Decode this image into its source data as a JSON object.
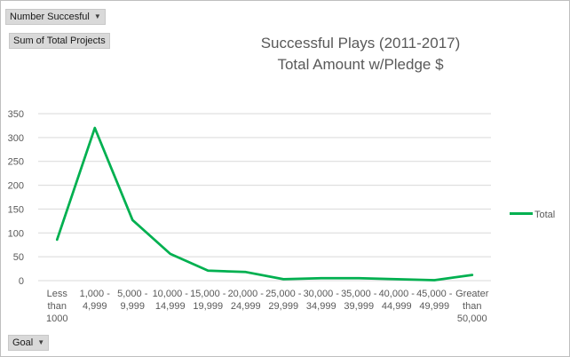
{
  "pivot": {
    "filter_button": "Number Succesful",
    "values_button": "Sum of Total Projects",
    "axis_button": "Goal"
  },
  "chart_data": {
    "type": "line",
    "title_line1": "Successful Plays (2011-2017)",
    "title_line2": "Total Amount w/Pledge $",
    "categories": [
      [
        "Less",
        "than",
        "1000"
      ],
      [
        "1,000 -",
        "4,999"
      ],
      [
        "5,000 -",
        "9,999"
      ],
      [
        "10,000 -",
        "14,999"
      ],
      [
        "15,000 -",
        "19,999"
      ],
      [
        "20,000 -",
        "24,999"
      ],
      [
        "25,000 -",
        "29,999"
      ],
      [
        "30,000 -",
        "34,999"
      ],
      [
        "35,000 -",
        "39,999"
      ],
      [
        "40,000 -",
        "44,999"
      ],
      [
        "45,000 -",
        "49,999"
      ],
      [
        "Greater",
        "than",
        "50,000"
      ]
    ],
    "series": [
      {
        "name": "Total",
        "color": "#00b050",
        "values": [
          86,
          320,
          127,
          56,
          21,
          18,
          3,
          5,
          5,
          3,
          1,
          12
        ]
      }
    ],
    "ylim": [
      0,
      350
    ],
    "yticks": [
      0,
      50,
      100,
      150,
      200,
      250,
      300,
      350
    ],
    "grid": true,
    "legend_position": "right"
  }
}
